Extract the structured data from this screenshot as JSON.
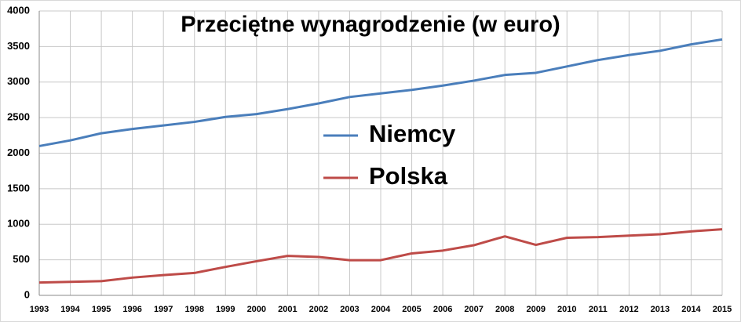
{
  "chart_data": {
    "type": "line",
    "title": "Przeciętne wynagrodzenie (w euro)",
    "x": [
      1993,
      1994,
      1995,
      1996,
      1997,
      1998,
      1999,
      2000,
      2001,
      2002,
      2003,
      2004,
      2005,
      2006,
      2007,
      2008,
      2009,
      2010,
      2011,
      2012,
      2013,
      2014,
      2015
    ],
    "series": [
      {
        "name": "Niemcy",
        "color": "#4a7ebb",
        "values": [
          2100,
          2180,
          2280,
          2340,
          2390,
          2440,
          2510,
          2550,
          2620,
          2700,
          2790,
          2840,
          2890,
          2950,
          3020,
          3100,
          3130,
          3220,
          3310,
          3380,
          3440,
          3530,
          3600
        ]
      },
      {
        "name": "Polska",
        "color": "#be4b48",
        "values": [
          180,
          190,
          200,
          250,
          285,
          315,
          400,
          480,
          555,
          540,
          495,
          495,
          590,
          630,
          705,
          830,
          710,
          810,
          820,
          840,
          860,
          900,
          930
        ]
      }
    ],
    "xlim": [
      1993,
      2015
    ],
    "xticks": [
      1993,
      1994,
      1995,
      1996,
      1997,
      1998,
      1999,
      2000,
      2001,
      2002,
      2003,
      2004,
      2005,
      2006,
      2007,
      2008,
      2009,
      2010,
      2011,
      2012,
      2013,
      2014,
      2015
    ],
    "ylim": [
      0,
      4000
    ],
    "yticks": [
      0,
      500,
      1000,
      1500,
      2000,
      2500,
      3000,
      3500,
      4000
    ],
    "grid": true,
    "legend": "center"
  }
}
